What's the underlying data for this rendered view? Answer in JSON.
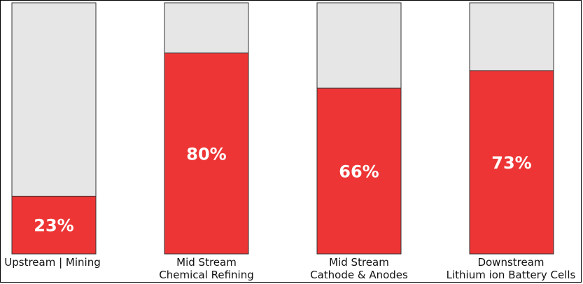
{
  "chart_data": {
    "type": "bar",
    "stacked_to": 100,
    "categories": [
      [
        "Upstream | Mining"
      ],
      [
        "Mid Stream",
        "Chemical Refining"
      ],
      [
        "Mid Stream",
        "Cathode & Anodes"
      ],
      [
        "Downstream",
        "Lithium ion Battery Cells"
      ]
    ],
    "values": [
      23,
      80,
      66,
      73
    ],
    "value_labels": [
      "23%",
      "80%",
      "66%",
      "73%"
    ],
    "ylim": [
      0,
      100
    ],
    "colors": {
      "fill": "#ee3535",
      "remainder": "#e6e6e6"
    },
    "grid": false,
    "legend": "none"
  }
}
